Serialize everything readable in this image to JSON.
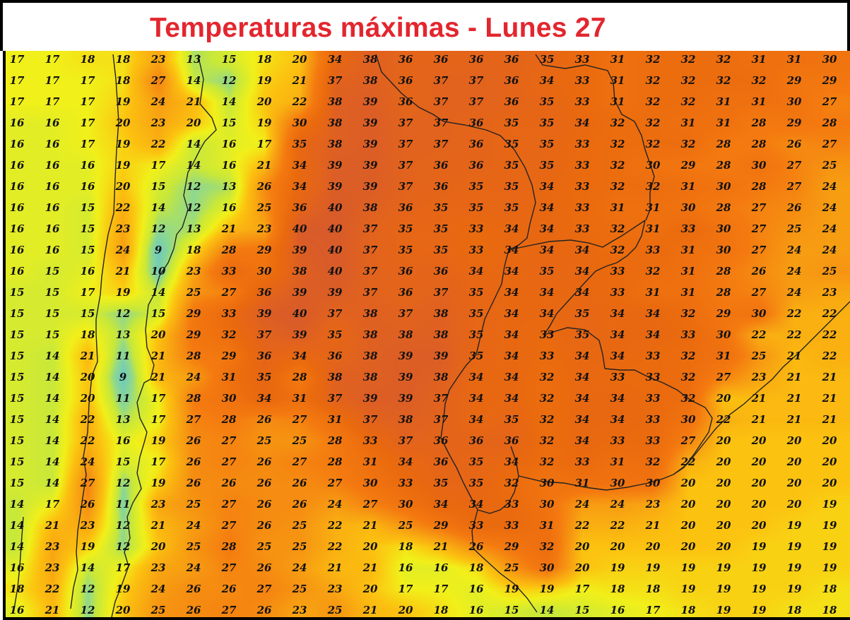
{
  "title": "Temperaturas máximas - Lunes 27",
  "colors": {
    "title": "#e3262e",
    "scale": [
      [
        9,
        "#6cc9c0"
      ],
      [
        12,
        "#8fd88f"
      ],
      [
        14,
        "#c8e83a"
      ],
      [
        17,
        "#f1f01a"
      ],
      [
        20,
        "#fcc210"
      ],
      [
        24,
        "#f79d12"
      ],
      [
        28,
        "#f47a10"
      ],
      [
        33,
        "#ea6a0e"
      ],
      [
        37,
        "#e2631d"
      ],
      [
        40,
        "#d85b2a"
      ]
    ]
  },
  "grid": [
    [
      17,
      17,
      18,
      18,
      23,
      13,
      15,
      18,
      20,
      34,
      38,
      36,
      36,
      36,
      36,
      35,
      33,
      31,
      32,
      32,
      32,
      31,
      31,
      30
    ],
    [
      17,
      17,
      17,
      18,
      27,
      14,
      12,
      19,
      21,
      37,
      38,
      36,
      37,
      37,
      36,
      34,
      33,
      31,
      32,
      32,
      32,
      32,
      29,
      29
    ],
    [
      17,
      17,
      17,
      19,
      24,
      21,
      14,
      20,
      22,
      38,
      39,
      36,
      37,
      37,
      36,
      35,
      33,
      31,
      32,
      32,
      31,
      31,
      30,
      27
    ],
    [
      16,
      16,
      17,
      20,
      23,
      20,
      15,
      19,
      30,
      38,
      39,
      37,
      37,
      36,
      35,
      35,
      34,
      32,
      32,
      31,
      31,
      28,
      29,
      28
    ],
    [
      16,
      16,
      17,
      19,
      22,
      14,
      16,
      17,
      35,
      38,
      39,
      37,
      37,
      36,
      35,
      35,
      33,
      32,
      32,
      32,
      28,
      28,
      26,
      27
    ],
    [
      16,
      16,
      16,
      19,
      17,
      14,
      16,
      21,
      34,
      39,
      39,
      37,
      36,
      36,
      35,
      35,
      33,
      32,
      30,
      29,
      28,
      30,
      27,
      25
    ],
    [
      16,
      16,
      16,
      20,
      15,
      12,
      13,
      26,
      34,
      39,
      39,
      37,
      36,
      35,
      35,
      34,
      33,
      32,
      32,
      31,
      30,
      28,
      27,
      24
    ],
    [
      16,
      16,
      15,
      22,
      14,
      12,
      16,
      25,
      36,
      40,
      38,
      36,
      35,
      35,
      35,
      34,
      33,
      31,
      31,
      30,
      28,
      27,
      26,
      24
    ],
    [
      16,
      16,
      15,
      23,
      12,
      13,
      21,
      23,
      40,
      40,
      37,
      35,
      35,
      33,
      34,
      34,
      33,
      32,
      31,
      33,
      30,
      27,
      25,
      24
    ],
    [
      16,
      16,
      15,
      24,
      9,
      18,
      28,
      29,
      39,
      40,
      37,
      35,
      35,
      33,
      34,
      34,
      34,
      32,
      33,
      31,
      30,
      27,
      24,
      24
    ],
    [
      16,
      15,
      16,
      21,
      10,
      23,
      33,
      30,
      38,
      40,
      37,
      36,
      36,
      34,
      34,
      35,
      34,
      33,
      32,
      31,
      28,
      26,
      24,
      25
    ],
    [
      15,
      15,
      17,
      19,
      14,
      25,
      27,
      36,
      39,
      39,
      37,
      36,
      37,
      35,
      34,
      34,
      34,
      33,
      31,
      31,
      28,
      27,
      24,
      23
    ],
    [
      15,
      15,
      15,
      12,
      15,
      29,
      33,
      39,
      40,
      37,
      38,
      37,
      38,
      35,
      34,
      34,
      35,
      34,
      34,
      32,
      29,
      30,
      22,
      22
    ],
    [
      15,
      15,
      18,
      13,
      20,
      29,
      32,
      37,
      39,
      35,
      38,
      38,
      38,
      35,
      34,
      33,
      35,
      34,
      34,
      33,
      30,
      22,
      22,
      22
    ],
    [
      15,
      14,
      21,
      11,
      21,
      28,
      29,
      36,
      34,
      36,
      38,
      39,
      39,
      35,
      34,
      33,
      34,
      34,
      33,
      32,
      31,
      25,
      21,
      22
    ],
    [
      15,
      14,
      20,
      9,
      21,
      24,
      31,
      35,
      28,
      38,
      38,
      39,
      38,
      34,
      34,
      32,
      34,
      33,
      33,
      32,
      27,
      23,
      21,
      21
    ],
    [
      15,
      14,
      20,
      11,
      17,
      28,
      30,
      34,
      31,
      37,
      39,
      39,
      37,
      34,
      34,
      32,
      34,
      34,
      33,
      32,
      20,
      21,
      21,
      21
    ],
    [
      15,
      14,
      22,
      13,
      17,
      27,
      28,
      26,
      27,
      31,
      37,
      38,
      37,
      34,
      35,
      32,
      34,
      34,
      33,
      30,
      22,
      21,
      21,
      21
    ],
    [
      15,
      14,
      22,
      16,
      19,
      26,
      27,
      25,
      25,
      28,
      33,
      37,
      36,
      36,
      36,
      32,
      34,
      33,
      33,
      27,
      20,
      20,
      20,
      20
    ],
    [
      15,
      14,
      24,
      15,
      17,
      26,
      27,
      26,
      27,
      28,
      31,
      34,
      36,
      35,
      34,
      32,
      33,
      31,
      32,
      22,
      20,
      20,
      20,
      20
    ],
    [
      15,
      14,
      27,
      12,
      19,
      26,
      26,
      26,
      26,
      27,
      30,
      33,
      35,
      35,
      32,
      30,
      31,
      30,
      30,
      20,
      20,
      20,
      20,
      20
    ],
    [
      14,
      17,
      26,
      11,
      23,
      25,
      27,
      26,
      26,
      24,
      27,
      30,
      34,
      34,
      33,
      30,
      24,
      24,
      23,
      20,
      20,
      20,
      20,
      19
    ],
    [
      14,
      21,
      23,
      12,
      21,
      24,
      27,
      26,
      25,
      22,
      21,
      25,
      29,
      33,
      33,
      31,
      22,
      22,
      21,
      20,
      20,
      20,
      19,
      19
    ],
    [
      14,
      23,
      19,
      12,
      20,
      25,
      28,
      25,
      25,
      22,
      20,
      18,
      21,
      26,
      29,
      32,
      20,
      20,
      20,
      20,
      20,
      19,
      19,
      19
    ],
    [
      16,
      23,
      14,
      17,
      23,
      24,
      27,
      26,
      24,
      21,
      21,
      16,
      16,
      18,
      25,
      30,
      20,
      19,
      19,
      19,
      19,
      19,
      19,
      19
    ],
    [
      18,
      22,
      12,
      19,
      24,
      26,
      26,
      27,
      25,
      23,
      20,
      17,
      17,
      16,
      19,
      19,
      17,
      18,
      18,
      19,
      19,
      19,
      19,
      18
    ],
    [
      16,
      21,
      12,
      20,
      25,
      26,
      27,
      26,
      23,
      25,
      21,
      20,
      18,
      16,
      15,
      14,
      15,
      16,
      17,
      18,
      19,
      19,
      18,
      18
    ]
  ]
}
